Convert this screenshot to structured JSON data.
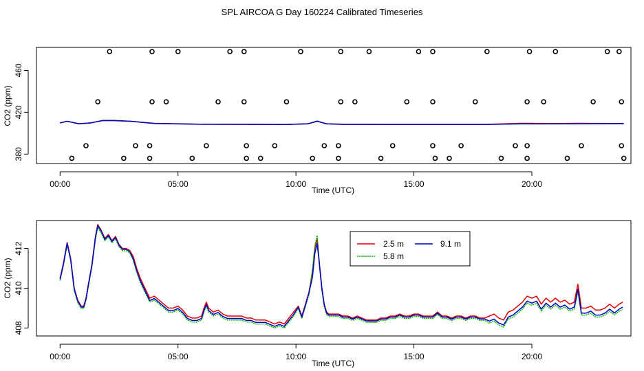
{
  "figure_title": "SPL AIRCOA G  Day 160224  Calibrated Timeseries",
  "colors": {
    "h2_5": "#e00000",
    "h5_8": "#00bb00",
    "h9_1": "#0000cc",
    "frame": "#000000"
  },
  "chart_data": [
    {
      "type": "line",
      "panel": "top",
      "xlabel": "Time (UTC)",
      "ylabel": "CO2 (ppm)",
      "xlim": [
        -1,
        24.2
      ],
      "ylim": [
        371,
        482
      ],
      "xticks": [
        0,
        5,
        10,
        15,
        20
      ],
      "xtick_labels": [
        "00:00",
        "05:00",
        "10:00",
        "15:00",
        "20:00"
      ],
      "yticks": [
        380,
        420,
        460
      ],
      "ytick_labels": [
        "380",
        "420",
        "460"
      ],
      "series": [
        {
          "name": "2.5 m",
          "color_key": "h2_5",
          "x": [
            0,
            0.3,
            0.8,
            1.3,
            1.8,
            2.3,
            3,
            4,
            6,
            8,
            9.5,
            10.5,
            10.9,
            11.3,
            12,
            14,
            16,
            18,
            19.5,
            21,
            22,
            23.9
          ],
          "values": [
            410,
            412,
            409,
            410,
            413,
            413,
            412,
            409.5,
            408.5,
            408.5,
            408.2,
            409,
            412,
            409,
            408.5,
            408.3,
            408.3,
            408.3,
            409.5,
            409.3,
            409.5,
            409.3
          ]
        },
        {
          "name": "5.8 m",
          "color_key": "h5_8",
          "x": [
            0,
            0.3,
            0.8,
            1.3,
            1.8,
            2.3,
            3,
            4,
            6,
            8,
            9.5,
            10.5,
            10.9,
            11.3,
            12,
            14,
            16,
            18,
            19.5,
            21,
            22,
            23.9
          ],
          "values": [
            410,
            411.8,
            409,
            410,
            412.6,
            412.6,
            411.8,
            409.3,
            408.3,
            408.2,
            408,
            408.8,
            412.5,
            408.8,
            408.2,
            408.1,
            408.1,
            408.1,
            408.7,
            408.7,
            408.9,
            409
          ]
        },
        {
          "name": "9.1 m",
          "color_key": "h9_1",
          "x": [
            0,
            0.3,
            0.8,
            1.3,
            1.8,
            2.3,
            3,
            4,
            6,
            8,
            9.5,
            10.5,
            10.9,
            11.3,
            12,
            14,
            16,
            18,
            19.5,
            21,
            22,
            23.9
          ],
          "values": [
            410,
            412,
            409,
            410,
            412.8,
            412.8,
            412,
            409.4,
            408.4,
            408.3,
            408.1,
            408.9,
            412,
            408.9,
            408.3,
            408.2,
            408.2,
            408.2,
            408.9,
            408.9,
            409,
            409.2
          ]
        }
      ],
      "scatter": {
        "marker": "open-circle",
        "x": [
          2.1,
          3.9,
          5.0,
          7.2,
          7.8,
          10.2,
          11.9,
          13.1,
          15.2,
          15.8,
          18.1,
          19.9,
          21.0,
          23.2,
          23.7,
          1.6,
          3.9,
          4.5,
          6.7,
          7.8,
          9.6,
          11.9,
          12.5,
          14.7,
          15.8,
          17.6,
          19.8,
          20.5,
          22.6,
          23.8,
          1.1,
          3.2,
          3.8,
          6.2,
          7.9,
          9.1,
          11.2,
          11.8,
          14.1,
          15.8,
          17.0,
          19.3,
          19.8,
          22.1,
          23.8,
          0.5,
          2.7,
          3.8,
          5.6,
          7.9,
          8.5,
          10.7,
          11.8,
          13.6,
          15.9,
          16.5,
          18.7,
          19.8,
          21.5,
          23.9
        ],
        "values": [
          478,
          478,
          478,
          478,
          478,
          478,
          478,
          478,
          478,
          478,
          478,
          478,
          478,
          478,
          478,
          430,
          430,
          430,
          430,
          430,
          430,
          430,
          430,
          430,
          430,
          430,
          430,
          430,
          430,
          430,
          388,
          388,
          388,
          388,
          388,
          388,
          388,
          388,
          388,
          388,
          388,
          388,
          388,
          388,
          388,
          376,
          376,
          376,
          376,
          376,
          376,
          376,
          376,
          376,
          376,
          376,
          376,
          376,
          376,
          376
        ]
      }
    },
    {
      "type": "line",
      "panel": "bottom",
      "xlabel": "Time (UTC)",
      "ylabel": "CO2 (ppm)",
      "xlim": [
        -1,
        24.2
      ],
      "ylim": [
        407.6,
        413.4
      ],
      "xticks": [
        0,
        5,
        10,
        15,
        20
      ],
      "xtick_labels": [
        "00:00",
        "05:00",
        "10:00",
        "15:00",
        "20:00"
      ],
      "yticks": [
        408,
        410,
        412
      ],
      "ytick_labels": [
        "408",
        "410",
        "412"
      ],
      "legend": {
        "position": "top-center",
        "entries": [
          "2.5 m",
          "9.1 m",
          "5.8 m"
        ]
      },
      "series": [
        {
          "name": "2.5 m",
          "color_key": "h2_5",
          "x": [
            0,
            0.15,
            0.3,
            0.45,
            0.6,
            0.75,
            0.9,
            1.0,
            1.1,
            1.2,
            1.35,
            1.5,
            1.6,
            1.75,
            1.9,
            2.05,
            2.2,
            2.35,
            2.5,
            2.65,
            2.8,
            2.95,
            3.1,
            3.25,
            3.4,
            3.6,
            3.8,
            4.0,
            4.2,
            4.4,
            4.6,
            4.8,
            5.0,
            5.2,
            5.4,
            5.6,
            5.8,
            6.0,
            6.1,
            6.2,
            6.3,
            6.5,
            6.7,
            6.9,
            7.1,
            7.3,
            7.5,
            7.7,
            7.9,
            8.1,
            8.3,
            8.5,
            8.7,
            8.9,
            9.1,
            9.3,
            9.5,
            9.7,
            9.9,
            10.1,
            10.25,
            10.4,
            10.55,
            10.7,
            10.8,
            10.9,
            11.0,
            11.1,
            11.2,
            11.3,
            11.4,
            11.6,
            11.8,
            12.0,
            12.2,
            12.4,
            12.6,
            12.8,
            13.0,
            13.2,
            13.4,
            13.6,
            13.8,
            14.0,
            14.2,
            14.4,
            14.6,
            14.8,
            15.0,
            15.2,
            15.4,
            15.6,
            15.8,
            16.0,
            16.2,
            16.4,
            16.6,
            16.8,
            17.0,
            17.2,
            17.4,
            17.6,
            17.8,
            18.0,
            18.2,
            18.4,
            18.6,
            18.8,
            19.0,
            19.2,
            19.4,
            19.6,
            19.8,
            20.0,
            20.2,
            20.4,
            20.6,
            20.8,
            21.0,
            21.2,
            21.4,
            21.6,
            21.8,
            21.95,
            22.1,
            22.3,
            22.5,
            22.7,
            22.9,
            23.1,
            23.3,
            23.5,
            23.7,
            23.85
          ],
          "values": [
            410.5,
            411.3,
            412.3,
            411.5,
            410.0,
            409.4,
            409.1,
            409.1,
            409.5,
            410.2,
            411.2,
            412.6,
            413.2,
            412.9,
            412.5,
            412.7,
            412.4,
            412.6,
            412.2,
            412.0,
            412.0,
            411.9,
            411.6,
            411.0,
            410.5,
            410.0,
            409.5,
            409.6,
            409.4,
            409.2,
            409.0,
            409.0,
            409.1,
            408.9,
            408.6,
            408.5,
            408.5,
            408.6,
            409.0,
            409.3,
            409.0,
            408.8,
            408.9,
            408.7,
            408.6,
            408.6,
            408.6,
            408.6,
            408.5,
            408.5,
            408.4,
            408.4,
            408.4,
            408.3,
            408.2,
            408.3,
            408.2,
            408.5,
            408.8,
            409.1,
            408.6,
            409.2,
            409.8,
            410.8,
            412.0,
            412.5,
            411.2,
            410.0,
            409.2,
            408.8,
            408.7,
            408.7,
            408.7,
            408.6,
            408.6,
            408.5,
            408.6,
            408.5,
            408.4,
            408.4,
            408.4,
            408.5,
            408.5,
            408.6,
            408.6,
            408.7,
            408.6,
            408.6,
            408.7,
            408.7,
            408.6,
            408.6,
            408.6,
            408.8,
            408.6,
            408.6,
            408.5,
            408.6,
            408.6,
            408.5,
            408.6,
            408.6,
            408.5,
            408.5,
            408.6,
            408.7,
            408.5,
            408.4,
            408.8,
            408.9,
            409.1,
            409.3,
            409.6,
            409.5,
            409.6,
            409.2,
            409.5,
            409.3,
            409.5,
            409.3,
            409.4,
            409.2,
            409.3,
            410.2,
            409.0,
            409.0,
            409.1,
            408.9,
            408.9,
            409.0,
            409.2,
            409.0,
            409.2,
            409.3
          ],
          "dummy": null
        }
      ]
    }
  ],
  "bottom_series_extra": [
    {
      "name": "5.8 m",
      "color_key": "h5_8"
    },
    {
      "name": "9.1 m",
      "color_key": "h9_1"
    }
  ]
}
